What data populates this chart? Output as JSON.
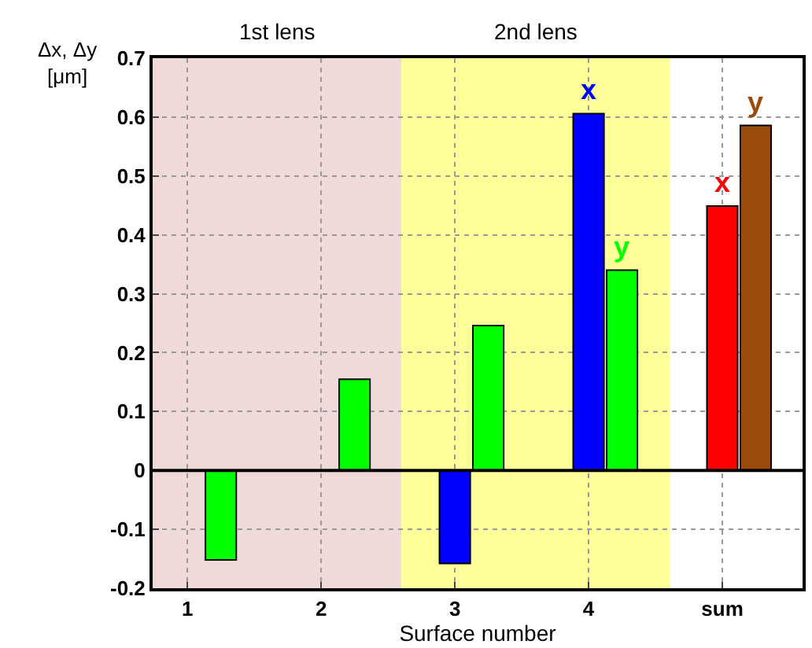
{
  "chart_data": {
    "type": "bar",
    "xlabel": "Surface number",
    "ylabel": "Δx, Δy\n[μm]",
    "series": [
      {
        "x": [
          1,
          2,
          3,
          4,
          5
        ],
        "values": [
          0,
          0,
          -0.158,
          0.606,
          0.449
        ],
        "colors": [
          "#000000",
          "#000000",
          "#0000ff",
          "#0000ff",
          "#ff0000"
        ]
      },
      {
        "x": [
          1.25,
          2.25,
          3.25,
          4.25,
          5.25
        ],
        "values": [
          -0.152,
          0.155,
          0.246,
          0.34,
          0.586
        ],
        "colors": [
          "#00ff00",
          "#00ff00",
          "#00ff00",
          "#00ff00",
          "#994c0c"
        ]
      }
    ],
    "xlim": [
      0.74,
      5.6
    ],
    "xticks": [
      1,
      2,
      3,
      4,
      {
        "value": 5,
        "label": "sum"
      }
    ],
    "ylim": [
      -0.2,
      0.7
    ],
    "yticks": [
      -0.2,
      -0.1,
      0,
      0.1,
      0.2,
      0.3,
      0.4,
      0.5,
      0.6,
      0.7
    ],
    "bands": [
      {
        "axis": "x",
        "from": 0.74,
        "to": 2.6,
        "label": "1st lens",
        "color": "#efd9d9"
      },
      {
        "axis": "x",
        "from": 2.6,
        "to": 4.61,
        "label": "2nd lens",
        "color": "#ffff99"
      }
    ],
    "ref_lines": [
      {
        "axis": "y",
        "value": 0,
        "color": "#000000"
      }
    ],
    "annotations": [
      {
        "text": "x",
        "x": 4,
        "y": 0.606
      },
      {
        "text": "y",
        "x": 4.25,
        "y": 0.34
      },
      {
        "text": "x",
        "x": 5,
        "y": 0.449
      },
      {
        "text": "y",
        "x": 5.25,
        "y": 0.586
      }
    ],
    "grid": true
  }
}
